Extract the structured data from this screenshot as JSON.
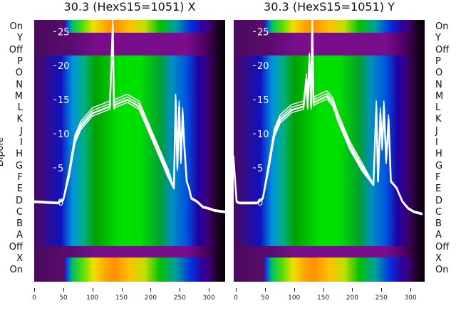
{
  "panels": [
    {
      "title": "30.3 (HexS15=1051) X"
    },
    {
      "title": "30.3 (HexS15=1051) Y"
    }
  ],
  "ylabel": "Dipole",
  "row_labels": [
    "On",
    "Y",
    "Off",
    "P",
    "O",
    "N",
    "M",
    "L",
    "K",
    "J",
    "I",
    "H",
    "G",
    "F",
    "E",
    "D",
    "C",
    "B",
    "A",
    "Off",
    "X",
    "On"
  ],
  "chart_data": [
    {
      "type": "heatmap",
      "title": "30.3 (HexS15=1051) X",
      "ylabel": "Dipole",
      "xlim": [
        0,
        328
      ],
      "ylim": [
        -11.7,
        26.7
      ],
      "xticks": [
        0,
        50,
        100,
        150,
        200,
        250,
        300
      ],
      "yticks": [
        0,
        5,
        10,
        15,
        20,
        25
      ],
      "series": [
        {
          "name": "profile",
          "x": [
            0,
            40,
            50,
            60,
            70,
            80,
            100,
            130,
            135,
            137,
            140,
            160,
            180,
            200,
            230,
            240,
            243,
            246,
            249,
            252,
            255,
            258,
            262,
            266,
            270,
            280,
            290,
            300,
            310,
            328
          ],
          "y": [
            0,
            -0.2,
            0.3,
            4,
            9,
            11,
            13,
            14,
            26,
            14,
            14.3,
            15,
            14,
            10,
            4,
            2,
            15,
            5,
            14,
            6,
            13,
            8,
            3,
            2,
            0.5,
            0,
            -0.8,
            -1,
            -1.3,
            -1.5
          ]
        }
      ]
    },
    {
      "type": "heatmap",
      "title": "30.3 (HexS15=1051) Y",
      "xlim": [
        0,
        324
      ],
      "ylim": [
        -11.7,
        26.7
      ],
      "xticks": [
        0,
        50,
        100,
        150,
        200,
        250,
        300
      ],
      "yticks": [
        0,
        5,
        10,
        15,
        20,
        25
      ],
      "series": [
        {
          "name": "profile",
          "x": [
            0,
            5,
            10,
            40,
            50,
            60,
            70,
            80,
            100,
            120,
            125,
            127,
            130,
            133,
            135,
            137,
            140,
            160,
            170,
            180,
            200,
            220,
            240,
            245,
            248,
            252,
            255,
            258,
            262,
            266,
            270,
            280,
            290,
            300,
            310,
            324
          ],
          "y": [
            6,
            0,
            -0.2,
            -0.2,
            0.5,
            5,
            10,
            12,
            13.5,
            14,
            18,
            14,
            21,
            14,
            27,
            14.5,
            14.7,
            15.5,
            14.5,
            12,
            8,
            5,
            2.5,
            14,
            3,
            13,
            8,
            14,
            6,
            12,
            3,
            2,
            0,
            -1,
            -1.5,
            -1.8
          ]
        }
      ]
    }
  ]
}
